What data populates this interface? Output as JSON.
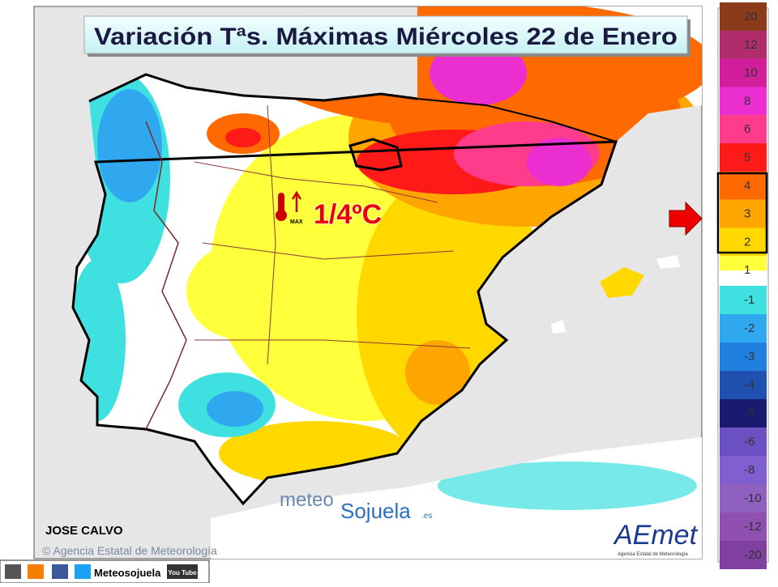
{
  "header": {
    "title": "Variación Tªs. Máximas Miércoles 22 de Enero"
  },
  "map": {
    "annotation": "1/4ºC",
    "max_label": "MAX"
  },
  "legend": {
    "items": [
      {
        "label": "20",
        "color": "#8b3a1a"
      },
      {
        "label": "12",
        "color": "#b02c6a"
      },
      {
        "label": "10",
        "color": "#d21e9a"
      },
      {
        "label": "8",
        "color": "#ea2ed0"
      },
      {
        "label": "6",
        "color": "#ff3c8c"
      },
      {
        "label": "5",
        "color": "#ff1a1a"
      },
      {
        "label": "4",
        "color": "#ff6a00"
      },
      {
        "label": "3",
        "color": "#ffa500"
      },
      {
        "label": "2",
        "color": "#ffd800"
      },
      {
        "label": "1",
        "color": "#ffff3c"
      },
      {
        "label": "-1",
        "color": "#3ee0e0"
      },
      {
        "label": "-2",
        "color": "#30a8f0"
      },
      {
        "label": "-3",
        "color": "#2080e0"
      },
      {
        "label": "-4",
        "color": "#2050b0"
      },
      {
        "label": "-5",
        "color": "#1a1a70"
      },
      {
        "label": "-6",
        "color": "#6a50c0"
      },
      {
        "label": "-8",
        "color": "#8060d0"
      },
      {
        "label": "-10",
        "color": "#9060c0"
      },
      {
        "label": "-12",
        "color": "#9050b0"
      },
      {
        "label": "-20",
        "color": "#8040a0"
      }
    ]
  },
  "credits": {
    "author": "JOSE CALVO",
    "copyright": "© Agencia Estatal de Meteorología",
    "brand_meteo": "meteo",
    "brand_sojuela": "Sojuela",
    "brand_es": ".es",
    "aemet": "AEmet",
    "aemet_sub": "Agencia Estatal de Meteorología"
  },
  "footer": {
    "handle": "Meteosojuela",
    "youtube": "You Tube"
  }
}
